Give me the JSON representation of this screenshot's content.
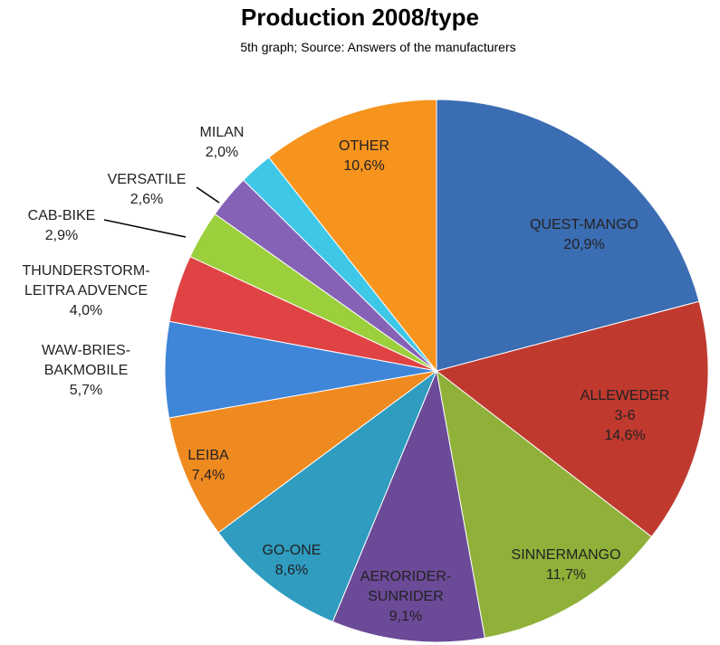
{
  "chart_data": {
    "type": "pie",
    "title": "Production 2008/type",
    "subtitle": "5th graph; Source: Answers of the manufacturers",
    "categories": [
      "QUEST-MANGO",
      "ALLEWEDER 3-6",
      "SINNERMANGO",
      "AERORIDER-\nSUNRIDER",
      "GO-ONE",
      "LEIBA",
      "WAW-BRIES-\nBAKMOBILE",
      "THUNDERSTORM-\nLEITRA ADVENCE",
      "CAB-BIKE",
      "VERSATILE",
      "MILAN",
      "OTHER"
    ],
    "values": [
      20.9,
      14.6,
      11.7,
      9.1,
      8.6,
      7.4,
      5.7,
      4.0,
      2.9,
      2.6,
      2.0,
      10.6
    ],
    "value_labels": [
      "20,9%",
      "14,6%",
      "11,7%",
      "9,1%",
      "8,6%",
      "7,4%",
      "5,7%",
      "4,0%",
      "2,9%",
      "2,6%",
      "2,0%",
      "10,6%"
    ],
    "colors": [
      "#3b6db3",
      "#c0392f",
      "#8fb13a",
      "#6b4a98",
      "#2f9cc0",
      "#ef8a20",
      "#3f86d8",
      "#df4343",
      "#9ccf3c",
      "#8562b5",
      "#3fc7e8",
      "#f7941e"
    ]
  }
}
